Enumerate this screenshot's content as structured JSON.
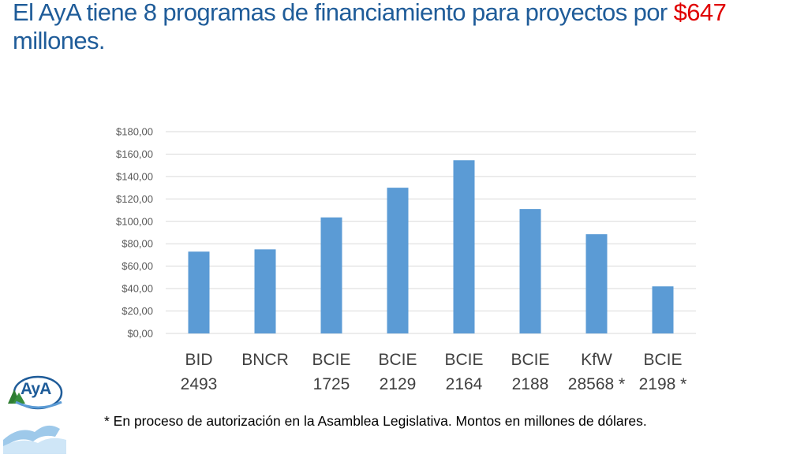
{
  "title": {
    "main": "El AyA tiene 8 programas de financiamiento para proyectos por ",
    "amount": "$647",
    "line2": "millones."
  },
  "footnote": "* En proceso de autorización en la Asamblea Legislativa. Montos en millones de dólares.",
  "logo": {
    "text": "AyA"
  },
  "colors": {
    "bar": "#5b9bd5",
    "title": "#1f5c99",
    "highlight": "#e00000",
    "grid": "#d9d9d9"
  },
  "chart_data": {
    "type": "bar",
    "title": "",
    "xlabel": "",
    "ylabel": "",
    "categories": [
      [
        "BID",
        "2493"
      ],
      [
        "BNCR",
        ""
      ],
      [
        "BCIE",
        "1725"
      ],
      [
        "BCIE",
        "2129"
      ],
      [
        "BCIE",
        "2164"
      ],
      [
        "BCIE",
        "2188"
      ],
      [
        "KfW",
        "28568 *"
      ],
      [
        "BCIE",
        "2198 *"
      ]
    ],
    "values": [
      73,
      75,
      103.5,
      130,
      154.5,
      111,
      88.5,
      42
    ],
    "ylim": [
      0,
      180
    ],
    "yticks": [
      "$0,00",
      "$20,00",
      "$40,00",
      "$60,00",
      "$80,00",
      "$100,00",
      "$120,00",
      "$140,00",
      "$160,00",
      "$180,00"
    ],
    "grid": true,
    "legend": "none"
  }
}
